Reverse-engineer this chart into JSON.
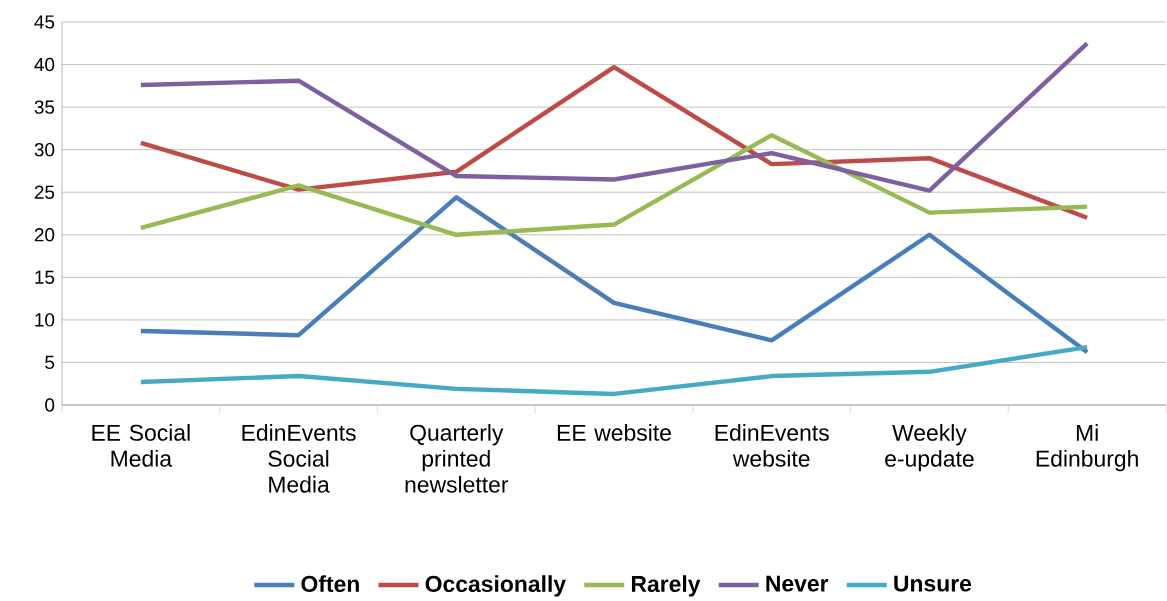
{
  "chart_data": {
    "type": "line",
    "categories": [
      "EE Social Media",
      "EdinEvents Social Media",
      "Quarterly printed newsletter",
      "EE website",
      "EdinEvents website",
      "Weekly e-update",
      "Mi Edinburgh"
    ],
    "series": [
      {
        "name": "Often",
        "color": "#4a7ebb",
        "values": [
          8.7,
          8.2,
          24.4,
          12.0,
          7.6,
          20.0,
          6.2
        ]
      },
      {
        "name": "Occasionally",
        "color": "#be4b48",
        "values": [
          30.8,
          25.3,
          27.4,
          39.7,
          28.3,
          29.0,
          22.0
        ]
      },
      {
        "name": "Rarely",
        "color": "#98b954",
        "values": [
          20.8,
          25.8,
          20.0,
          21.2,
          31.7,
          22.6,
          23.3
        ]
      },
      {
        "name": "Never",
        "color": "#7d60a0",
        "values": [
          37.6,
          38.1,
          26.9,
          26.5,
          29.6,
          25.2,
          42.5
        ]
      },
      {
        "name": "Unsure",
        "color": "#46aac5",
        "values": [
          2.7,
          3.4,
          1.9,
          1.3,
          3.4,
          3.9,
          6.8
        ]
      }
    ],
    "ylim": [
      0,
      45
    ],
    "yticks": [
      0,
      5,
      10,
      15,
      20,
      25,
      30,
      35,
      40,
      45
    ],
    "grid": "y",
    "legend": "bottom",
    "marker": "none",
    "line_style": "solid"
  }
}
